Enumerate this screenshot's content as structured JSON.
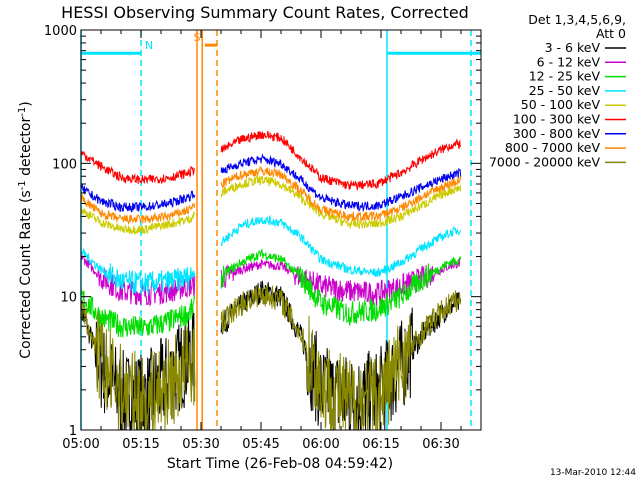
{
  "chart_data": {
    "type": "line",
    "title": "HESSI Observing Summary Count Rates, Corrected",
    "xlabel": "Start Time (26-Feb-08 04:59:42)",
    "ylabel_parts": [
      "Corrected Count Rate (s",
      "-1",
      " detector",
      "-1",
      ")"
    ],
    "x_unit": "minutes since 05:00",
    "xlim": [
      0,
      100
    ],
    "ylim": [
      1,
      1000
    ],
    "y_scale": "log",
    "x_ticks": [
      {
        "x": 0,
        "label": "05:00"
      },
      {
        "x": 15,
        "label": "05:15"
      },
      {
        "x": 30,
        "label": "05:30"
      },
      {
        "x": 45,
        "label": "05:45"
      },
      {
        "x": 60,
        "label": "06:00"
      },
      {
        "x": 75,
        "label": "06:15"
      },
      {
        "x": 90,
        "label": "06:30"
      }
    ],
    "y_ticks": [
      {
        "y": 1,
        "label": "1"
      },
      {
        "y": 10,
        "label": "10"
      },
      {
        "y": 100,
        "label": "100"
      },
      {
        "y": 1000,
        "label": "1000"
      }
    ],
    "legend": {
      "placement": "right",
      "header": [
        "Det 1,3,4,5,6,9,",
        "Att 0"
      ]
    },
    "data_gap": [
      28.5,
      35
    ],
    "series": [
      {
        "name": "3 - 6 keV",
        "color": "#000000",
        "values": [
          [
            0,
            8
          ],
          [
            5,
            3
          ],
          [
            10,
            1.8
          ],
          [
            16,
            1.7
          ],
          [
            22,
            2.5
          ],
          [
            27,
            3.5
          ],
          [
            36,
            6.5
          ],
          [
            40,
            8.5
          ],
          [
            45,
            11
          ],
          [
            50,
            10
          ],
          [
            55,
            5
          ],
          [
            60,
            2
          ],
          [
            67,
            1.7
          ],
          [
            74,
            1.8
          ],
          [
            80,
            3
          ],
          [
            86,
            5.5
          ],
          [
            92,
            8.5
          ],
          [
            95,
            9
          ]
        ]
      },
      {
        "name": "6 - 12 keV",
        "color": "#cc00cc",
        "values": [
          [
            0,
            20
          ],
          [
            5,
            14
          ],
          [
            10,
            11
          ],
          [
            16,
            10.5
          ],
          [
            22,
            11
          ],
          [
            27,
            12
          ],
          [
            36,
            14
          ],
          [
            40,
            16
          ],
          [
            45,
            17.5
          ],
          [
            50,
            17
          ],
          [
            55,
            14
          ],
          [
            60,
            12
          ],
          [
            67,
            11
          ],
          [
            74,
            10.5
          ],
          [
            80,
            12
          ],
          [
            86,
            14
          ],
          [
            92,
            17
          ],
          [
            95,
            18
          ]
        ]
      },
      {
        "name": "12 - 25 keV",
        "color": "#00dd00",
        "values": [
          [
            0,
            10
          ],
          [
            5,
            7
          ],
          [
            10,
            6
          ],
          [
            16,
            5.8
          ],
          [
            22,
            6.5
          ],
          [
            27,
            7.5
          ],
          [
            36,
            15
          ],
          [
            40,
            18
          ],
          [
            45,
            21
          ],
          [
            50,
            19
          ],
          [
            55,
            14
          ],
          [
            60,
            9
          ],
          [
            67,
            7.5
          ],
          [
            74,
            8
          ],
          [
            80,
            10
          ],
          [
            86,
            14
          ],
          [
            92,
            18
          ],
          [
            95,
            19
          ]
        ]
      },
      {
        "name": "25 - 50 keV",
        "color": "#00e5ff",
        "values": [
          [
            0,
            22
          ],
          [
            5,
            16
          ],
          [
            10,
            13
          ],
          [
            16,
            12.5
          ],
          [
            22,
            13
          ],
          [
            27,
            14
          ],
          [
            36,
            27
          ],
          [
            40,
            34
          ],
          [
            45,
            38
          ],
          [
            50,
            36
          ],
          [
            55,
            28
          ],
          [
            60,
            19
          ],
          [
            67,
            16
          ],
          [
            74,
            15
          ],
          [
            80,
            18
          ],
          [
            86,
            24
          ],
          [
            92,
            30
          ],
          [
            95,
            32
          ]
        ]
      },
      {
        "name": "50 - 100 keV",
        "color": "#cccc00",
        "values": [
          [
            0,
            45
          ],
          [
            5,
            36
          ],
          [
            10,
            32
          ],
          [
            16,
            32
          ],
          [
            22,
            35
          ],
          [
            27,
            38
          ],
          [
            36,
            62
          ],
          [
            40,
            70
          ],
          [
            45,
            75
          ],
          [
            50,
            70
          ],
          [
            55,
            55
          ],
          [
            60,
            42
          ],
          [
            67,
            35
          ],
          [
            74,
            35
          ],
          [
            80,
            40
          ],
          [
            86,
            50
          ],
          [
            92,
            62
          ],
          [
            95,
            66
          ]
        ]
      },
      {
        "name": "100 - 300 keV",
        "color": "#ff0000",
        "values": [
          [
            0,
            120
          ],
          [
            5,
            95
          ],
          [
            10,
            78
          ],
          [
            16,
            75
          ],
          [
            22,
            78
          ],
          [
            27,
            85
          ],
          [
            36,
            130
          ],
          [
            40,
            150
          ],
          [
            45,
            165
          ],
          [
            50,
            155
          ],
          [
            55,
            110
          ],
          [
            60,
            78
          ],
          [
            67,
            68
          ],
          [
            74,
            70
          ],
          [
            80,
            85
          ],
          [
            86,
            110
          ],
          [
            92,
            135
          ],
          [
            95,
            140
          ]
        ]
      },
      {
        "name": "300 - 800 keV",
        "color": "#0000ee",
        "values": [
          [
            0,
            65
          ],
          [
            5,
            52
          ],
          [
            10,
            47
          ],
          [
            16,
            47
          ],
          [
            22,
            50
          ],
          [
            27,
            56
          ],
          [
            36,
            90
          ],
          [
            40,
            100
          ],
          [
            45,
            108
          ],
          [
            50,
            100
          ],
          [
            55,
            75
          ],
          [
            60,
            55
          ],
          [
            67,
            48
          ],
          [
            74,
            48
          ],
          [
            80,
            56
          ],
          [
            86,
            68
          ],
          [
            92,
            80
          ],
          [
            95,
            85
          ]
        ]
      },
      {
        "name": "800 - 7000 keV",
        "color": "#ff8800",
        "values": [
          [
            0,
            55
          ],
          [
            5,
            42
          ],
          [
            10,
            38
          ],
          [
            16,
            38
          ],
          [
            22,
            40
          ],
          [
            27,
            45
          ],
          [
            36,
            72
          ],
          [
            40,
            82
          ],
          [
            45,
            88
          ],
          [
            50,
            83
          ],
          [
            55,
            62
          ],
          [
            60,
            45
          ],
          [
            67,
            40
          ],
          [
            74,
            40
          ],
          [
            80,
            46
          ],
          [
            86,
            58
          ],
          [
            92,
            70
          ],
          [
            95,
            75
          ]
        ]
      },
      {
        "name": "7000 - 20000 keV",
        "color": "#888800",
        "values": [
          [
            0,
            8.5
          ],
          [
            5,
            3.2
          ],
          [
            10,
            2
          ],
          [
            16,
            1.6
          ],
          [
            22,
            2.2
          ],
          [
            27,
            3
          ],
          [
            36,
            6.8
          ],
          [
            40,
            8.8
          ],
          [
            45,
            10.5
          ],
          [
            50,
            9.5
          ],
          [
            55,
            5.2
          ],
          [
            60,
            2.2
          ],
          [
            67,
            1.6
          ],
          [
            74,
            1.7
          ],
          [
            80,
            3.2
          ],
          [
            86,
            5.8
          ],
          [
            92,
            8.8
          ],
          [
            95,
            9.5
          ]
        ]
      }
    ],
    "annotations": [
      {
        "label": "N",
        "color": "#00e5ff",
        "kind": "night",
        "intervals": [
          [
            0,
            15
          ],
          [
            76.5,
            100
          ]
        ],
        "level": 670
      },
      {
        "label": "S",
        "color": "#ff8800",
        "kind": "saa",
        "intervals": [
          [
            31,
            34
          ]
        ],
        "level": 770
      }
    ],
    "vertical_markers": [
      {
        "x": 0,
        "color": "#00e5ff",
        "style": "solid"
      },
      {
        "x": 15,
        "color": "#00e5ff",
        "style": "dashed"
      },
      {
        "x": 76.5,
        "color": "#00e5ff",
        "style": "solid"
      },
      {
        "x": 97.5,
        "color": "#00e5ff",
        "style": "dashed"
      },
      {
        "x": 29,
        "color": "#ff8800",
        "style": "solid"
      },
      {
        "x": 30.3,
        "color": "#ff8800",
        "style": "solid"
      },
      {
        "x": 34,
        "color": "#ff8800",
        "style": "dashed"
      }
    ]
  },
  "footer": {
    "timestamp": "13-Mar-2010 12:44"
  }
}
